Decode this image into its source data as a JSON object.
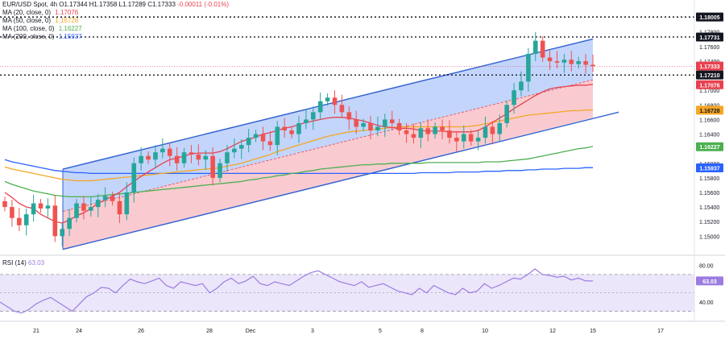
{
  "header": {
    "symbol": "EUR/USD Spot",
    "timeframe": "4h",
    "open": "O1.17344",
    "high": "H1.17358",
    "low": "L1.17289",
    "close": "C1.17333",
    "change": "-0.00011 (-0.01%)"
  },
  "indicators": [
    {
      "label": "MA (20, close, 0)",
      "value": "1.17076",
      "color": "#e8414f"
    },
    {
      "label": "MA (50, close, 0)",
      "value": "1.16728",
      "color": "#f5a623"
    },
    {
      "label": "MA (100, close, 0)",
      "value": "1.16227",
      "color": "#4caf50"
    },
    {
      "label": "MA (200, close, 0)",
      "value": "1.15937",
      "color": "#2962ff"
    }
  ],
  "rsi": {
    "label": "RSI (14)",
    "value": "63.03",
    "color": "#9c7ce0"
  },
  "chart_data": {
    "type": "line",
    "price_ylim": [
      1.1475,
      1.1815
    ],
    "price_ticks": [
      "1.17800",
      "1.17600",
      "1.17400",
      "1.17000",
      "1.16800",
      "1.16600",
      "1.16400",
      "1.16000",
      "1.15800",
      "1.15600",
      "1.15400",
      "1.15200",
      "1.15000"
    ],
    "x_ticks": [
      "21",
      "24",
      "26",
      "28",
      "Dec",
      "3",
      "5",
      "8",
      "10",
      "12",
      "15",
      "17"
    ],
    "levels": [
      {
        "value": "1.18005",
        "style": "dotted"
      },
      {
        "value": "1.17731",
        "style": "dotted"
      },
      {
        "value": "1.17210",
        "style": "dotted"
      }
    ],
    "price_labels": [
      {
        "value": "1.17333",
        "color": "#e8414f"
      },
      {
        "value": "1.17076",
        "color": "#e8414f"
      },
      {
        "value": "1.16728",
        "color": "#f5a623"
      },
      {
        "value": "1.16227",
        "color": "#4caf50"
      },
      {
        "value": "1.15937",
        "color": "#2962ff"
      }
    ],
    "close": [
      1.154,
      1.1525,
      1.1515,
      1.153,
      1.1545,
      1.1538,
      1.1542,
      1.15,
      1.151,
      1.1525,
      1.1545,
      1.1535,
      1.154,
      1.155,
      1.1555,
      1.1548,
      1.153,
      1.156,
      1.16,
      1.161,
      1.1605,
      1.1615,
      1.162,
      1.161,
      1.16,
      1.1615,
      1.1612,
      1.1605,
      1.161,
      1.158,
      1.16,
      1.1615,
      1.162,
      1.1625,
      1.1635,
      1.164,
      1.163,
      1.1625,
      1.165,
      1.1645,
      1.164,
      1.1655,
      1.166,
      1.167,
      1.1685,
      1.169,
      1.168,
      1.167,
      1.166,
      1.165,
      1.1655,
      1.1645,
      1.165,
      1.166,
      1.1655,
      1.1645,
      1.164,
      1.1635,
      1.1648,
      1.164,
      1.165,
      1.1645,
      1.1635,
      1.163,
      1.164,
      1.163,
      1.1635,
      1.165,
      1.164,
      1.1655,
      1.168,
      1.17,
      1.1712,
      1.175,
      1.1768,
      1.1745,
      1.174,
      1.1738,
      1.1742,
      1.1736,
      1.174,
      1.1735,
      1.1733
    ],
    "ma20": [
      1.156,
      1.1553,
      1.1545,
      1.154,
      1.1538,
      1.153,
      1.1525,
      1.152,
      1.1518,
      1.1522,
      1.1528,
      1.1532,
      1.1538,
      1.1545,
      1.155,
      1.1555,
      1.156,
      1.1568,
      1.1575,
      1.1582,
      1.1588,
      1.1594,
      1.16,
      1.1605,
      1.1607,
      1.161,
      1.1613,
      1.1614,
      1.1614,
      1.1614,
      1.1616,
      1.162,
      1.1625,
      1.163,
      1.1633,
      1.1636,
      1.164,
      1.1642,
      1.1645,
      1.1648,
      1.165,
      1.1653,
      1.1656,
      1.1658,
      1.166,
      1.1662,
      1.1663,
      1.1663,
      1.1662,
      1.166,
      1.1658,
      1.1655,
      1.1652,
      1.165,
      1.1649,
      1.1648,
      1.1648,
      1.1647,
      1.1645,
      1.1644,
      1.1644,
      1.1644,
      1.1643,
      1.1643,
      1.1643,
      1.1643,
      1.1645,
      1.165,
      1.1656,
      1.1662,
      1.1668,
      1.1675,
      1.1681,
      1.1687,
      1.1693,
      1.1698,
      1.1702,
      1.1704,
      1.1705,
      1.1706,
      1.1707,
      1.1707,
      1.1708
    ],
    "ma50": [
      1.1595,
      1.1592,
      1.159,
      1.1588,
      1.1586,
      1.1584,
      1.1582,
      1.158,
      1.1578,
      1.1577,
      1.1576,
      1.1576,
      1.1576,
      1.1577,
      1.1578,
      1.1579,
      1.158,
      1.1581,
      1.1582,
      1.1583,
      1.1584,
      1.1585,
      1.1586,
      1.1587,
      1.1588,
      1.1589,
      1.159,
      1.1591,
      1.1592,
      1.1593,
      1.1594,
      1.1596,
      1.1598,
      1.16,
      1.1603,
      1.1606,
      1.1609,
      1.1612,
      1.1616,
      1.1619,
      1.1622,
      1.1625,
      1.1628,
      1.1631,
      1.1634,
      1.1637,
      1.1639,
      1.1641,
      1.1643,
      1.1644,
      1.1645,
      1.1646,
      1.1647,
      1.1648,
      1.1649,
      1.165,
      1.165,
      1.165,
      1.165,
      1.165,
      1.165,
      1.165,
      1.165,
      1.165,
      1.165,
      1.1651,
      1.1652,
      1.1654,
      1.1656,
      1.1658,
      1.166,
      1.1662,
      1.1664,
      1.1666,
      1.1667,
      1.1668,
      1.1669,
      1.167,
      1.1671,
      1.1672,
      1.1672,
      1.1673,
      1.1673
    ],
    "ma100": [
      1.1575,
      1.1571,
      1.1568,
      1.1565,
      1.1562,
      1.156,
      1.1558,
      1.1556,
      1.1555,
      1.1554,
      1.1554,
      1.1554,
      1.1554,
      1.1555,
      1.1556,
      1.1557,
      1.1558,
      1.1559,
      1.156,
      1.1561,
      1.1562,
      1.1563,
      1.1564,
      1.1565,
      1.1566,
      1.1567,
      1.1568,
      1.1569,
      1.157,
      1.1571,
      1.1572,
      1.1573,
      1.1574,
      1.1575,
      1.1577,
      1.1578,
      1.158,
      1.1581,
      1.1583,
      1.1584,
      1.1586,
      1.1587,
      1.1589,
      1.159,
      1.1592,
      1.1593,
      1.1594,
      1.1595,
      1.1596,
      1.1597,
      1.1598,
      1.1598,
      1.1599,
      1.1599,
      1.16,
      1.16,
      1.16,
      1.16,
      1.16,
      1.1601,
      1.1601,
      1.1601,
      1.1601,
      1.1601,
      1.1601,
      1.1601,
      1.1601,
      1.1602,
      1.1602,
      1.1602,
      1.1603,
      1.1604,
      1.1605,
      1.1606,
      1.1608,
      1.161,
      1.1612,
      1.1614,
      1.1616,
      1.1618,
      1.162,
      1.1621,
      1.1623
    ],
    "ma200": [
      1.1605,
      1.1602,
      1.16,
      1.1598,
      1.1596,
      1.1594,
      1.1592,
      1.159,
      1.1589,
      1.1588,
      1.1587,
      1.1587,
      1.1586,
      1.1586,
      1.1586,
      1.1586,
      1.1586,
      1.1586,
      1.1586,
      1.1586,
      1.1586,
      1.1586,
      1.1586,
      1.1586,
      1.1586,
      1.1586,
      1.1586,
      1.1586,
      1.1586,
      1.1586,
      1.1586,
      1.1586,
      1.1586,
      1.1586,
      1.1586,
      1.1586,
      1.1586,
      1.1586,
      1.1586,
      1.1586,
      1.1586,
      1.1586,
      1.1586,
      1.1586,
      1.1586,
      1.1586,
      1.1586,
      1.1586,
      1.1586,
      1.1586,
      1.1586,
      1.1586,
      1.1586,
      1.1586,
      1.1586,
      1.1586,
      1.1586,
      1.1586,
      1.1587,
      1.1587,
      1.1587,
      1.1587,
      1.1587,
      1.1588,
      1.1588,
      1.1588,
      1.1588,
      1.1589,
      1.1589,
      1.1589,
      1.159,
      1.159,
      1.159,
      1.1591,
      1.1591,
      1.1592,
      1.1592,
      1.1592,
      1.1593,
      1.1593,
      1.1593,
      1.1594,
      1.1594
    ],
    "rsi_ticks": [
      "80.00",
      "40.00"
    ],
    "rsi_ylim": [
      20,
      90
    ],
    "rsi_values": [
      40,
      35,
      30,
      28,
      32,
      38,
      42,
      45,
      40,
      35,
      30,
      38,
      46,
      50,
      56,
      55,
      50,
      58,
      65,
      62,
      60,
      63,
      66,
      58,
      55,
      62,
      60,
      58,
      60,
      50,
      55,
      62,
      66,
      60,
      63,
      68,
      60,
      58,
      62,
      60,
      58,
      63,
      68,
      72,
      74,
      70,
      66,
      62,
      60,
      58,
      62,
      56,
      58,
      60,
      56,
      52,
      50,
      48,
      55,
      50,
      58,
      54,
      50,
      48,
      55,
      50,
      52,
      60,
      55,
      58,
      62,
      66,
      65,
      70,
      76,
      70,
      69,
      67,
      68,
      64,
      66,
      63,
      63
    ]
  }
}
